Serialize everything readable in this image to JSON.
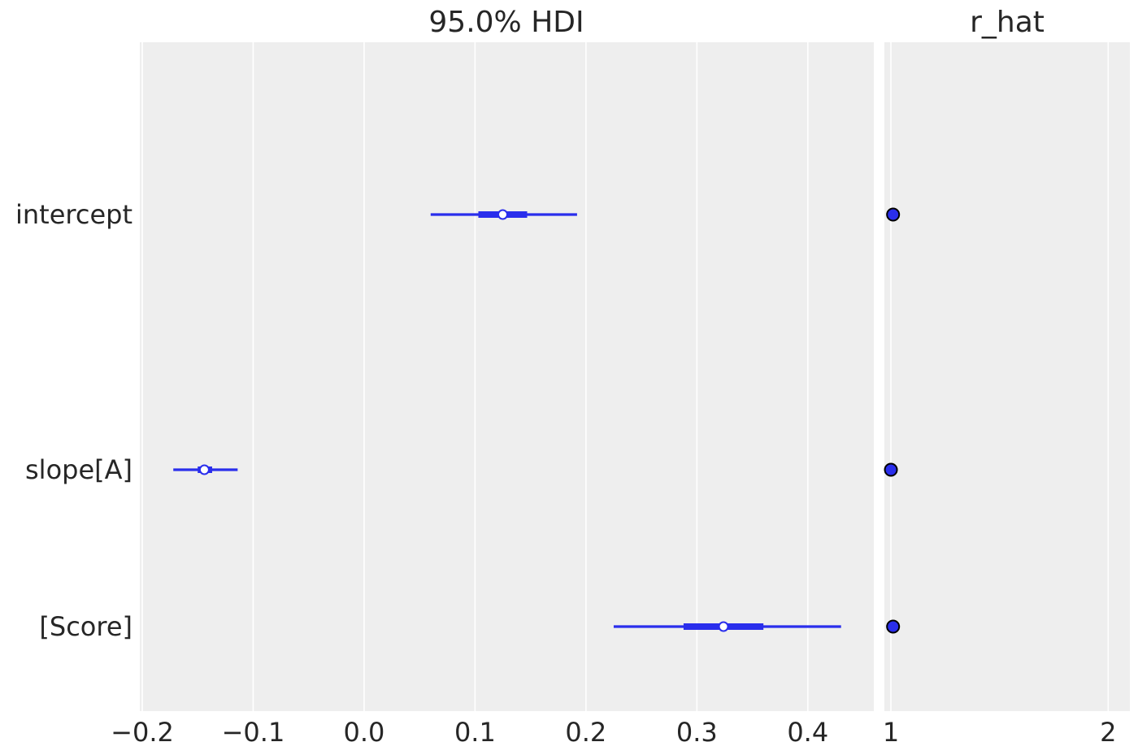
{
  "chart_data": [
    {
      "type": "forest",
      "title": "95.0% HDI",
      "rows": [
        "intercept",
        "slope[A]",
        "[Score]"
      ],
      "xlim": [
        -0.2,
        0.45
      ],
      "x_ticks": [
        -0.2,
        -0.1,
        0.0,
        0.1,
        0.2,
        0.3,
        0.4
      ],
      "x_tick_labels": [
        "−0.2",
        "−0.1",
        "0.0",
        "0.1",
        "0.2",
        "0.3",
        "0.4"
      ],
      "grid": true,
      "color": "#2a2eec",
      "series": [
        {
          "row": "intercept",
          "hdi_low": 0.06,
          "hdi_high": 0.192,
          "iqr_low": 0.103,
          "iqr_high": 0.147,
          "median": 0.125
        },
        {
          "row": "slope[A]",
          "hdi_low": -0.172,
          "hdi_high": -0.114,
          "iqr_low": -0.15,
          "iqr_high": -0.137,
          "median": -0.144
        },
        {
          "row": "[Score]",
          "hdi_low": 0.225,
          "hdi_high": 0.43,
          "iqr_low": 0.288,
          "iqr_high": 0.36,
          "median": 0.324
        }
      ]
    },
    {
      "type": "scatter",
      "title": "r_hat",
      "rows": [
        "intercept",
        "slope[A]",
        "[Score]"
      ],
      "xlim": [
        0.97,
        2.1
      ],
      "x_ticks": [
        1,
        2
      ],
      "x_tick_labels": [
        "1",
        "2"
      ],
      "grid": true,
      "color": "#2a2eec",
      "values": [
        1.01,
        1.0,
        1.01
      ]
    }
  ]
}
